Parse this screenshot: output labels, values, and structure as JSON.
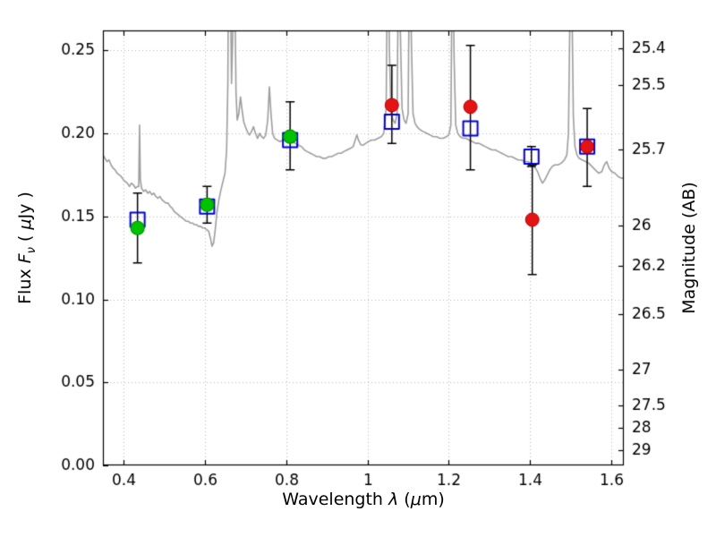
{
  "labels": {
    "xlabel_word": "Wavelength ",
    "xlabel_lambda": "λ",
    "xlabel_paren_open": " (",
    "xlabel_mu": "μ",
    "xlabel_rest": "m)",
    "flux_word": "Flux ",
    "flux_F": "F",
    "flux_nu": "ν",
    "flux_open": " ( ",
    "flux_mu": "μ",
    "flux_rest": "Jy )",
    "right_label": "Magnitude (AB)"
  },
  "chart_data": {
    "type": "line+scatter",
    "title": "",
    "xlabel": "Wavelength λ (μm)",
    "ylabel_left": "Flux Fν ( μJy )",
    "ylabel_right": "Magnitude (AB)",
    "xlim": [
      0.35,
      1.63
    ],
    "ylim": [
      0.0,
      0.262
    ],
    "x_ticks": [
      {
        "v": 0.4,
        "label": "0.4"
      },
      {
        "v": 0.6,
        "label": "0.6"
      },
      {
        "v": 0.8,
        "label": "0.8"
      },
      {
        "v": 1.0,
        "label": "1"
      },
      {
        "v": 1.2,
        "label": "1.2"
      },
      {
        "v": 1.4,
        "label": "1.4"
      },
      {
        "v": 1.6,
        "label": "1.6"
      }
    ],
    "y_ticks_left": [
      {
        "v": 0.0,
        "label": "0.00"
      },
      {
        "v": 0.05,
        "label": "0.05"
      },
      {
        "v": 0.1,
        "label": "0.10"
      },
      {
        "v": 0.15,
        "label": "0.15"
      },
      {
        "v": 0.2,
        "label": "0.20"
      },
      {
        "v": 0.25,
        "label": "0.25"
      }
    ],
    "y_ticks_right": [
      {
        "label": "25.4",
        "flux": 0.25119
      },
      {
        "label": "25.5",
        "flux": 0.22909
      },
      {
        "label": "25.7",
        "flux": 0.19055
      },
      {
        "label": "26",
        "flux": 0.14454
      },
      {
        "label": "26.2",
        "flux": 0.12023
      },
      {
        "label": "26.5",
        "flux": 0.0912
      },
      {
        "label": "27",
        "flux": 0.05754
      },
      {
        "label": "27.5",
        "flux": 0.03631
      },
      {
        "label": "28",
        "flux": 0.02291
      },
      {
        "label": "29",
        "flux": 0.00912
      }
    ],
    "grid": {
      "show": true,
      "style": "dotted",
      "color": "#b8b8b8"
    },
    "colors": {
      "spectrum": "#9e9e9e",
      "errorbar": "#000000",
      "green_fill": "#00c400",
      "green_edge": "#009100",
      "red_fill": "#e41414",
      "red_edge": "#b00000",
      "blue_edge": "#0000dd",
      "frame": "#000000"
    },
    "errorbars": [
      {
        "x": 0.435,
        "lo": 0.122,
        "hi": 0.164
      },
      {
        "x": 0.606,
        "lo": 0.146,
        "hi": 0.168
      },
      {
        "x": 0.81,
        "lo": 0.178,
        "hi": 0.219
      },
      {
        "x": 1.06,
        "lo": 0.194,
        "hi": 0.241
      },
      {
        "x": 1.253,
        "lo": 0.178,
        "hi": 0.253
      },
      {
        "x": 1.403,
        "lo": 0.18,
        "hi": 0.192
      },
      {
        "x": 1.405,
        "lo": 0.115,
        "hi": 0.181
      },
      {
        "x": 1.54,
        "lo": 0.168,
        "hi": 0.215
      }
    ],
    "series": [
      {
        "name": "blue-open-squares",
        "marker": "square-open",
        "points": [
          {
            "x": 0.435,
            "y": 0.148
          },
          {
            "x": 0.606,
            "y": 0.156
          },
          {
            "x": 0.81,
            "y": 0.196
          },
          {
            "x": 1.06,
            "y": 0.207
          },
          {
            "x": 1.253,
            "y": 0.203
          },
          {
            "x": 1.403,
            "y": 0.186
          },
          {
            "x": 1.54,
            "y": 0.192
          }
        ]
      },
      {
        "name": "green-filled-circles",
        "marker": "circle-green",
        "points": [
          {
            "x": 0.435,
            "y": 0.143
          },
          {
            "x": 0.606,
            "y": 0.157
          },
          {
            "x": 0.81,
            "y": 0.198
          }
        ]
      },
      {
        "name": "red-filled-circles",
        "marker": "circle-red",
        "points": [
          {
            "x": 1.06,
            "y": 0.217
          },
          {
            "x": 1.253,
            "y": 0.216
          },
          {
            "x": 1.405,
            "y": 0.148
          },
          {
            "x": 1.54,
            "y": 0.192
          }
        ]
      }
    ],
    "spectrum": [
      [
        0.35,
        0.187
      ],
      [
        0.355,
        0.185
      ],
      [
        0.36,
        0.183
      ],
      [
        0.365,
        0.184
      ],
      [
        0.37,
        0.181
      ],
      [
        0.375,
        0.179
      ],
      [
        0.38,
        0.178
      ],
      [
        0.385,
        0.176
      ],
      [
        0.39,
        0.175
      ],
      [
        0.395,
        0.174
      ],
      [
        0.4,
        0.172
      ],
      [
        0.405,
        0.171
      ],
      [
        0.41,
        0.17
      ],
      [
        0.415,
        0.168
      ],
      [
        0.42,
        0.17
      ],
      [
        0.425,
        0.169
      ],
      [
        0.43,
        0.167
      ],
      [
        0.435,
        0.168
      ],
      [
        0.438,
        0.168
      ],
      [
        0.44,
        0.205
      ],
      [
        0.442,
        0.172
      ],
      [
        0.445,
        0.167
      ],
      [
        0.45,
        0.165
      ],
      [
        0.455,
        0.166
      ],
      [
        0.46,
        0.164
      ],
      [
        0.465,
        0.165
      ],
      [
        0.47,
        0.163
      ],
      [
        0.475,
        0.164
      ],
      [
        0.48,
        0.162
      ],
      [
        0.485,
        0.161
      ],
      [
        0.49,
        0.162
      ],
      [
        0.495,
        0.16
      ],
      [
        0.5,
        0.159
      ],
      [
        0.505,
        0.158
      ],
      [
        0.51,
        0.158
      ],
      [
        0.515,
        0.156
      ],
      [
        0.52,
        0.155
      ],
      [
        0.525,
        0.153
      ],
      [
        0.53,
        0.152
      ],
      [
        0.535,
        0.151
      ],
      [
        0.54,
        0.15
      ],
      [
        0.545,
        0.149
      ],
      [
        0.55,
        0.148
      ],
      [
        0.555,
        0.147
      ],
      [
        0.56,
        0.147
      ],
      [
        0.565,
        0.146
      ],
      [
        0.57,
        0.146
      ],
      [
        0.575,
        0.145
      ],
      [
        0.58,
        0.145
      ],
      [
        0.585,
        0.144
      ],
      [
        0.59,
        0.144
      ],
      [
        0.595,
        0.143
      ],
      [
        0.6,
        0.143
      ],
      [
        0.605,
        0.142
      ],
      [
        0.61,
        0.141
      ],
      [
        0.615,
        0.136
      ],
      [
        0.618,
        0.132
      ],
      [
        0.622,
        0.134
      ],
      [
        0.626,
        0.142
      ],
      [
        0.63,
        0.152
      ],
      [
        0.635,
        0.16
      ],
      [
        0.64,
        0.166
      ],
      [
        0.645,
        0.171
      ],
      [
        0.65,
        0.176
      ],
      [
        0.654,
        0.19
      ],
      [
        0.657,
        0.23
      ],
      [
        0.659,
        0.32
      ],
      [
        0.661,
        0.36
      ],
      [
        0.663,
        0.3
      ],
      [
        0.666,
        0.23
      ],
      [
        0.669,
        0.26
      ],
      [
        0.671,
        0.34
      ],
      [
        0.674,
        0.29
      ],
      [
        0.677,
        0.225
      ],
      [
        0.68,
        0.208
      ],
      [
        0.684,
        0.212
      ],
      [
        0.688,
        0.222
      ],
      [
        0.692,
        0.214
      ],
      [
        0.696,
        0.207
      ],
      [
        0.7,
        0.204
      ],
      [
        0.705,
        0.201
      ],
      [
        0.71,
        0.199
      ],
      [
        0.715,
        0.201
      ],
      [
        0.72,
        0.204
      ],
      [
        0.725,
        0.2
      ],
      [
        0.73,
        0.197
      ],
      [
        0.735,
        0.2
      ],
      [
        0.74,
        0.198
      ],
      [
        0.745,
        0.197
      ],
      [
        0.75,
        0.199
      ],
      [
        0.755,
        0.208
      ],
      [
        0.759,
        0.228
      ],
      [
        0.763,
        0.212
      ],
      [
        0.767,
        0.2
      ],
      [
        0.772,
        0.197
      ],
      [
        0.778,
        0.196
      ],
      [
        0.785,
        0.195
      ],
      [
        0.792,
        0.196
      ],
      [
        0.8,
        0.196
      ],
      [
        0.808,
        0.195
      ],
      [
        0.815,
        0.196
      ],
      [
        0.822,
        0.194
      ],
      [
        0.83,
        0.193
      ],
      [
        0.838,
        0.192
      ],
      [
        0.845,
        0.19
      ],
      [
        0.852,
        0.189
      ],
      [
        0.86,
        0.188
      ],
      [
        0.868,
        0.187
      ],
      [
        0.875,
        0.186
      ],
      [
        0.882,
        0.186
      ],
      [
        0.89,
        0.185
      ],
      [
        0.898,
        0.185
      ],
      [
        0.905,
        0.186
      ],
      [
        0.912,
        0.186
      ],
      [
        0.92,
        0.187
      ],
      [
        0.928,
        0.188
      ],
      [
        0.935,
        0.188
      ],
      [
        0.942,
        0.189
      ],
      [
        0.95,
        0.19
      ],
      [
        0.958,
        0.191
      ],
      [
        0.965,
        0.192
      ],
      [
        0.97,
        0.196
      ],
      [
        0.974,
        0.199
      ],
      [
        0.978,
        0.196
      ],
      [
        0.984,
        0.193
      ],
      [
        0.99,
        0.193
      ],
      [
        0.996,
        0.194
      ],
      [
        1.002,
        0.195
      ],
      [
        1.01,
        0.196
      ],
      [
        1.018,
        0.196
      ],
      [
        1.026,
        0.197
      ],
      [
        1.034,
        0.198
      ],
      [
        1.04,
        0.2
      ],
      [
        1.046,
        0.215
      ],
      [
        1.05,
        0.33
      ],
      [
        1.054,
        0.25
      ],
      [
        1.058,
        0.212
      ],
      [
        1.063,
        0.208
      ],
      [
        1.068,
        0.206
      ],
      [
        1.073,
        0.212
      ],
      [
        1.077,
        0.33
      ],
      [
        1.081,
        0.26
      ],
      [
        1.085,
        0.215
      ],
      [
        1.09,
        0.208
      ],
      [
        1.095,
        0.206
      ],
      [
        1.1,
        0.212
      ],
      [
        1.104,
        0.33
      ],
      [
        1.108,
        0.255
      ],
      [
        1.112,
        0.212
      ],
      [
        1.117,
        0.206
      ],
      [
        1.122,
        0.204
      ],
      [
        1.13,
        0.202
      ],
      [
        1.138,
        0.201
      ],
      [
        1.146,
        0.2
      ],
      [
        1.154,
        0.199
      ],
      [
        1.162,
        0.198
      ],
      [
        1.17,
        0.198
      ],
      [
        1.178,
        0.197
      ],
      [
        1.186,
        0.197
      ],
      [
        1.194,
        0.198
      ],
      [
        1.2,
        0.199
      ],
      [
        1.205,
        0.205
      ],
      [
        1.209,
        0.33
      ],
      [
        1.213,
        0.245
      ],
      [
        1.217,
        0.205
      ],
      [
        1.222,
        0.2
      ],
      [
        1.228,
        0.198
      ],
      [
        1.235,
        0.197
      ],
      [
        1.242,
        0.197
      ],
      [
        1.25,
        0.196
      ],
      [
        1.258,
        0.195
      ],
      [
        1.266,
        0.194
      ],
      [
        1.274,
        0.194
      ],
      [
        1.282,
        0.193
      ],
      [
        1.29,
        0.192
      ],
      [
        1.298,
        0.191
      ],
      [
        1.306,
        0.19
      ],
      [
        1.314,
        0.19
      ],
      [
        1.322,
        0.189
      ],
      [
        1.33,
        0.188
      ],
      [
        1.338,
        0.187
      ],
      [
        1.346,
        0.186
      ],
      [
        1.354,
        0.186
      ],
      [
        1.362,
        0.185
      ],
      [
        1.37,
        0.184
      ],
      [
        1.378,
        0.184
      ],
      [
        1.386,
        0.183
      ],
      [
        1.394,
        0.183
      ],
      [
        1.402,
        0.182
      ],
      [
        1.41,
        0.18
      ],
      [
        1.418,
        0.177
      ],
      [
        1.424,
        0.173
      ],
      [
        1.43,
        0.17
      ],
      [
        1.436,
        0.172
      ],
      [
        1.442,
        0.175
      ],
      [
        1.448,
        0.178
      ],
      [
        1.454,
        0.18
      ],
      [
        1.46,
        0.181
      ],
      [
        1.468,
        0.181
      ],
      [
        1.476,
        0.182
      ],
      [
        1.484,
        0.184
      ],
      [
        1.49,
        0.187
      ],
      [
        1.494,
        0.2
      ],
      [
        1.497,
        0.26
      ],
      [
        1.5,
        0.36
      ],
      [
        1.503,
        0.27
      ],
      [
        1.506,
        0.21
      ],
      [
        1.51,
        0.192
      ],
      [
        1.515,
        0.187
      ],
      [
        1.52,
        0.185
      ],
      [
        1.528,
        0.184
      ],
      [
        1.536,
        0.183
      ],
      [
        1.544,
        0.182
      ],
      [
        1.552,
        0.18
      ],
      [
        1.56,
        0.178
      ],
      [
        1.568,
        0.176
      ],
      [
        1.576,
        0.177
      ],
      [
        1.582,
        0.181
      ],
      [
        1.588,
        0.183
      ],
      [
        1.594,
        0.179
      ],
      [
        1.6,
        0.177
      ],
      [
        1.608,
        0.176
      ],
      [
        1.616,
        0.174
      ],
      [
        1.624,
        0.173
      ],
      [
        1.63,
        0.173
      ]
    ]
  }
}
